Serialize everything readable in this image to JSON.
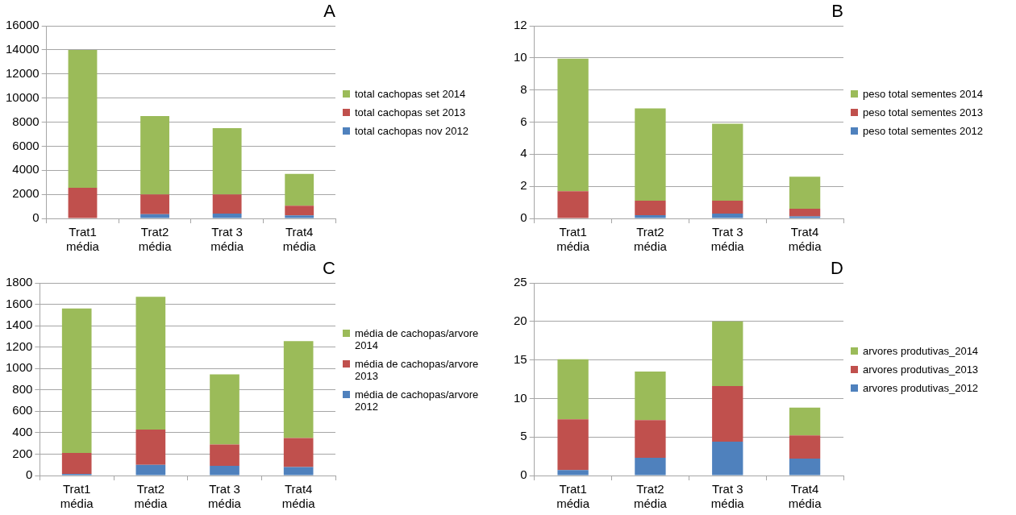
{
  "chart_data": [
    {
      "type": "bar",
      "title": "A",
      "stacked": true,
      "grid": "y",
      "legend": "right",
      "categories": [
        "Trat1 média",
        "Trat2 média",
        "Trat 3 média",
        "Trat4 média"
      ],
      "ylim": [
        0,
        16000
      ],
      "yticks": [
        0,
        2000,
        4000,
        6000,
        8000,
        10000,
        12000,
        14000,
        16000
      ],
      "series": [
        {
          "name": "total cachopas nov 2012",
          "color": "#4f81bd",
          "values": [
            0,
            350,
            400,
            250
          ]
        },
        {
          "name": "total cachopas set 2013",
          "color": "#c0504d",
          "values": [
            2550,
            1650,
            1600,
            800
          ]
        },
        {
          "name": "total cachopas set 2014",
          "color": "#9bbb59",
          "values": [
            11450,
            6500,
            5500,
            2650
          ]
        }
      ]
    },
    {
      "type": "bar",
      "title": "B",
      "stacked": true,
      "grid": "y",
      "legend": "right",
      "categories": [
        "Trat1 média",
        "Trat2 média",
        "Trat 3 média",
        "Trat4 média"
      ],
      "ylim": [
        0,
        12
      ],
      "yticks": [
        0,
        2,
        4,
        6,
        8,
        10,
        12
      ],
      "series": [
        {
          "name": "peso total sementes 2012",
          "color": "#4f81bd",
          "values": [
            0,
            0.2,
            0.3,
            0.12
          ]
        },
        {
          "name": "peso total sementes 2013",
          "color": "#c0504d",
          "values": [
            1.7,
            0.9,
            0.8,
            0.48
          ]
        },
        {
          "name": "peso total sementes 2014",
          "color": "#9bbb59",
          "values": [
            8.25,
            5.75,
            4.8,
            2.0
          ]
        }
      ]
    },
    {
      "type": "bar",
      "title": "C",
      "stacked": true,
      "grid": "y",
      "legend": "right",
      "categories": [
        "Trat1 média",
        "Trat2 média",
        "Trat 3 média",
        "Trat4 média"
      ],
      "ylim": [
        0,
        1800
      ],
      "yticks": [
        0,
        200,
        400,
        600,
        800,
        1000,
        1200,
        1400,
        1600,
        1800
      ],
      "series": [
        {
          "name": "média de cachopas/arvore 2012",
          "color": "#4f81bd",
          "values": [
            15,
            100,
            90,
            80
          ]
        },
        {
          "name": "média de cachopas/arvore 2013",
          "color": "#c0504d",
          "values": [
            195,
            330,
            200,
            270
          ]
        },
        {
          "name": "média de cachopas/arvore 2014",
          "color": "#9bbb59",
          "values": [
            1350,
            1240,
            655,
            905
          ]
        }
      ]
    },
    {
      "type": "bar",
      "title": "D",
      "stacked": true,
      "grid": "y",
      "legend": "right",
      "categories": [
        "Trat1 média",
        "Trat2 média",
        "Trat 3 média",
        "Trat4 média"
      ],
      "ylim": [
        0,
        25
      ],
      "yticks": [
        0,
        5,
        10,
        15,
        20,
        25
      ],
      "series": [
        {
          "name": "arvores produtivas_2012",
          "color": "#4f81bd",
          "values": [
            0.7,
            2.3,
            4.4,
            2.2
          ]
        },
        {
          "name": "arvores produtivas_2013",
          "color": "#c0504d",
          "values": [
            6.6,
            4.9,
            7.2,
            3.0
          ]
        },
        {
          "name": "arvores produtivas_2014",
          "color": "#9bbb59",
          "values": [
            7.8,
            6.3,
            8.4,
            3.6
          ]
        }
      ]
    }
  ]
}
